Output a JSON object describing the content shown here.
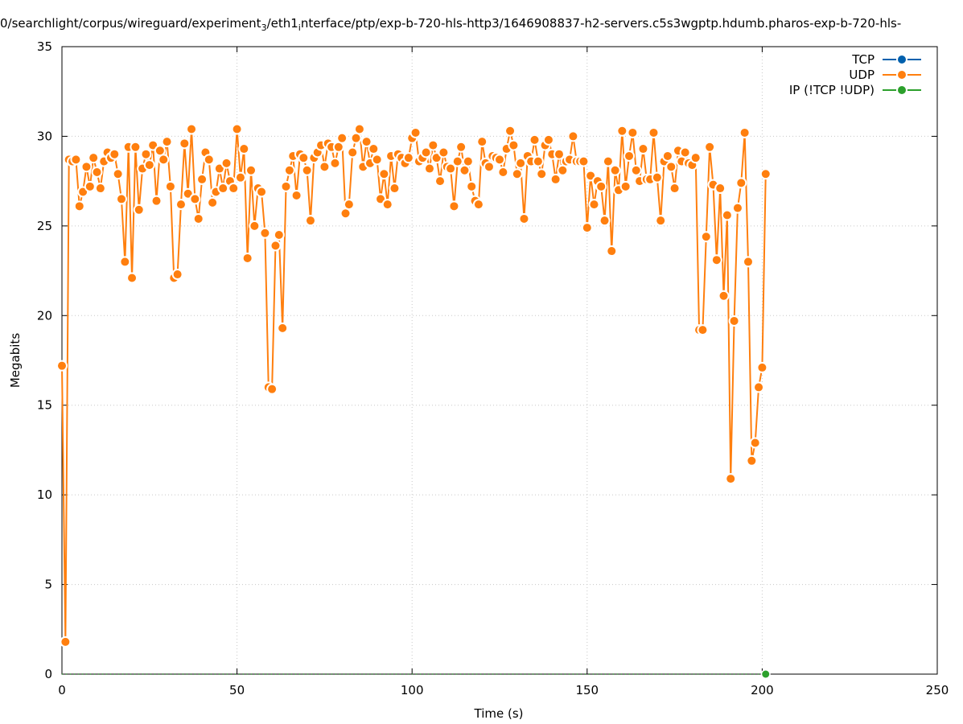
{
  "chart_data": {
    "type": "line",
    "title": "0/searchlight/corpus/wireguard/experiment",
    "title_sub": "3",
    "title_mid": "/eth1",
    "title_sub2": "i",
    "title_tail": "nterface/ptp/exp-b-720-hls-http3/1646908837-h2-servers.c5s3wgptp.hdumb.pharos-exp-b-720-hls-",
    "xlabel": "Time (s)",
    "ylabel": "Megabits",
    "xlim": [
      0,
      250
    ],
    "ylim": [
      0,
      35
    ],
    "xticks": [
      0,
      50,
      100,
      150,
      200,
      250
    ],
    "yticks": [
      0,
      5,
      10,
      15,
      20,
      25,
      30,
      35
    ],
    "grid": true,
    "legend_position": "top-right",
    "series": [
      {
        "name": "TCP",
        "color": "#0060ad",
        "x": [],
        "y": []
      },
      {
        "name": "UDP",
        "color": "#ff7f0e",
        "x": [
          0,
          1,
          2,
          3,
          4,
          5,
          6,
          7,
          8,
          9,
          10,
          11,
          12,
          13,
          14,
          15,
          16,
          17,
          18,
          19,
          20,
          21,
          22,
          23,
          24,
          25,
          26,
          27,
          28,
          29,
          30,
          31,
          32,
          33,
          34,
          35,
          36,
          37,
          38,
          39,
          40,
          41,
          42,
          43,
          44,
          45,
          46,
          47,
          48,
          49,
          50,
          51,
          52,
          53,
          54,
          55,
          56,
          57,
          58,
          59,
          60,
          61,
          62,
          63,
          64,
          65,
          66,
          67,
          68,
          69,
          70,
          71,
          72,
          73,
          74,
          75,
          76,
          77,
          78,
          79,
          80,
          81,
          82,
          83,
          84,
          85,
          86,
          87,
          88,
          89,
          90,
          91,
          92,
          93,
          94,
          95,
          96,
          97,
          98,
          99,
          100,
          101,
          102,
          103,
          104,
          105,
          106,
          107,
          108,
          109,
          110,
          111,
          112,
          113,
          114,
          115,
          116,
          117,
          118,
          119,
          120,
          121,
          122,
          123,
          124,
          125,
          126,
          127,
          128,
          129,
          130,
          131,
          132,
          133,
          134,
          135,
          136,
          137,
          138,
          139,
          140,
          141,
          142,
          143,
          144,
          145,
          146,
          147,
          148,
          149,
          150,
          151,
          152,
          153,
          154,
          155,
          156,
          157,
          158,
          159,
          160,
          161,
          162,
          163,
          164,
          165,
          166,
          167,
          168,
          169,
          170,
          171,
          172,
          173,
          174,
          175,
          176,
          177,
          178,
          179,
          180,
          181,
          182,
          183,
          184,
          185,
          186,
          187,
          188,
          189,
          190,
          191,
          192,
          193,
          194,
          195,
          196,
          197,
          198,
          199,
          200,
          201
        ],
        "y": [
          17.2,
          1.8,
          28.7,
          28.6,
          28.7,
          26.1,
          26.9,
          28.3,
          27.2,
          28.8,
          28.0,
          27.1,
          28.6,
          29.1,
          28.8,
          29.0,
          27.9,
          26.5,
          23.0,
          29.4,
          22.1,
          29.4,
          25.9,
          28.2,
          29.0,
          28.4,
          29.5,
          26.4,
          29.2,
          28.7,
          29.7,
          27.2,
          22.1,
          22.3,
          26.2,
          29.6,
          26.8,
          30.4,
          26.5,
          25.4,
          27.6,
          29.1,
          28.7,
          26.3,
          26.9,
          28.2,
          27.1,
          28.5,
          27.5,
          27.1,
          30.4,
          27.7,
          29.3,
          23.2,
          28.1,
          25.0,
          27.1,
          26.9,
          24.6,
          16.0,
          15.9,
          23.9,
          24.5,
          19.3,
          27.2,
          28.1,
          28.9,
          26.7,
          29.0,
          28.8,
          28.1,
          25.3,
          28.8,
          29.1,
          29.5,
          28.3,
          29.6,
          29.4,
          28.5,
          29.4,
          29.9,
          25.7,
          26.2,
          29.1,
          29.9,
          30.4,
          28.3,
          29.7,
          28.5,
          29.3,
          28.7,
          26.5,
          27.9,
          26.2,
          28.9,
          27.1,
          29.0,
          28.8,
          28.5,
          28.8,
          29.9,
          30.2,
          28.6,
          28.8,
          29.1,
          28.2,
          29.5,
          28.8,
          27.5,
          29.1,
          28.3,
          28.2,
          26.1,
          28.6,
          29.4,
          28.1,
          28.6,
          27.2,
          26.4,
          26.2,
          29.7,
          28.5,
          28.3,
          28.9,
          28.8,
          28.7,
          28.0,
          29.3,
          30.3,
          29.5,
          27.9,
          28.5,
          25.4,
          28.9,
          28.6,
          29.8,
          28.6,
          27.9,
          29.5,
          29.8,
          29.0,
          27.6,
          29.0,
          28.1,
          28.6,
          28.7,
          30.0,
          28.6,
          28.6,
          28.6,
          24.9,
          27.8,
          26.2,
          27.5,
          27.2,
          25.3,
          28.6,
          23.6,
          28.1,
          27.0,
          30.3,
          27.2,
          28.9,
          30.2,
          28.1,
          27.5,
          29.3,
          27.6,
          27.6,
          30.2,
          27.7,
          25.3,
          28.6,
          28.9,
          28.3,
          27.1,
          29.2,
          28.6,
          29.1,
          28.5,
          28.4,
          28.8,
          19.2,
          19.2,
          24.4,
          29.4,
          27.3,
          23.1,
          27.1,
          21.1,
          25.6,
          10.9,
          19.7,
          26.0,
          27.4,
          30.2,
          23.0,
          11.9,
          12.9,
          16.0,
          17.1,
          27.9
        ]
      },
      {
        "name": "IP (!TCP  !UDP)",
        "color": "#2ca02c",
        "x": [
          201
        ],
        "y": [
          0
        ]
      }
    ]
  }
}
